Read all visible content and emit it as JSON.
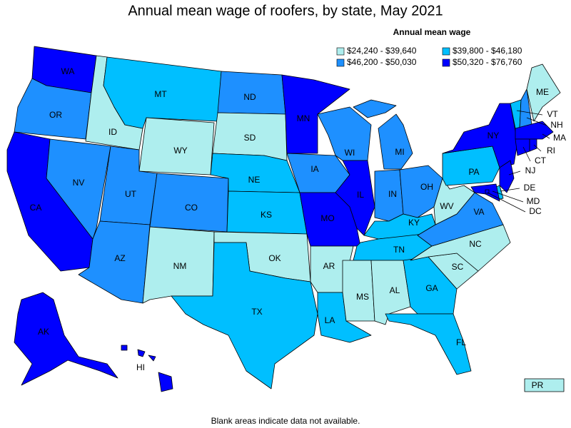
{
  "title": "Annual mean wage of roofers, by state, May 2021",
  "legend": {
    "title": "Annual mean wage",
    "items": [
      {
        "label": "$24,240 - $39,640",
        "color": "#aeeeee"
      },
      {
        "label": "$39,800 - $46,180",
        "color": "#00bfff"
      },
      {
        "label": "$46,200 - $50,030",
        "color": "#1e90ff"
      },
      {
        "label": "$50,320 - $76,760",
        "color": "#0000ff"
      }
    ]
  },
  "states": [
    {
      "label": "WA",
      "color": "#0000ff"
    },
    {
      "label": "OR",
      "color": "#1e90ff"
    },
    {
      "label": "CA",
      "color": "#0000ff"
    },
    {
      "label": "ID",
      "color": "#aeeeee"
    },
    {
      "label": "NV",
      "color": "#1e90ff"
    },
    {
      "label": "MT",
      "color": "#00bfff"
    },
    {
      "label": "WY",
      "color": "#aeeeee"
    },
    {
      "label": "UT",
      "color": "#1e90ff"
    },
    {
      "label": "AZ",
      "color": "#1e90ff"
    },
    {
      "label": "CO",
      "color": "#1e90ff"
    },
    {
      "label": "NM",
      "color": "#aeeeee"
    },
    {
      "label": "ND",
      "color": "#1e90ff"
    },
    {
      "label": "SD",
      "color": "#aeeeee"
    },
    {
      "label": "NE",
      "color": "#00bfff"
    },
    {
      "label": "KS",
      "color": "#00bfff"
    },
    {
      "label": "OK",
      "color": "#aeeeee"
    },
    {
      "label": "TX",
      "color": "#00bfff"
    },
    {
      "label": "MN",
      "color": "#0000ff"
    },
    {
      "label": "IA",
      "color": "#1e90ff"
    },
    {
      "label": "MO",
      "color": "#0000ff"
    },
    {
      "label": "AR",
      "color": "#aeeeee"
    },
    {
      "label": "LA",
      "color": "#00bfff"
    },
    {
      "label": "WI",
      "color": "#1e90ff"
    },
    {
      "label": "IL",
      "color": "#0000ff"
    },
    {
      "label": "MI",
      "color": "#1e90ff"
    },
    {
      "label": "IN",
      "color": "#1e90ff"
    },
    {
      "label": "OH",
      "color": "#1e90ff"
    },
    {
      "label": "KY",
      "color": "#00bfff"
    },
    {
      "label": "TN",
      "color": "#00bfff"
    },
    {
      "label": "MS",
      "color": "#aeeeee"
    },
    {
      "label": "AL",
      "color": "#aeeeee"
    },
    {
      "label": "GA",
      "color": "#00bfff"
    },
    {
      "label": "FL",
      "color": "#00bfff"
    },
    {
      "label": "SC",
      "color": "#aeeeee"
    },
    {
      "label": "NC",
      "color": "#aeeeee"
    },
    {
      "label": "VA",
      "color": "#1e90ff"
    },
    {
      "label": "WV",
      "color": "#aeeeee"
    },
    {
      "label": "PA",
      "color": "#00bfff"
    },
    {
      "label": "NY",
      "color": "#0000ff"
    },
    {
      "label": "VT",
      "color": "#00bfff"
    },
    {
      "label": "NH",
      "color": "#1e90ff"
    },
    {
      "label": "ME",
      "color": "#aeeeee"
    },
    {
      "label": "MA",
      "color": "#0000ff"
    },
    {
      "label": "CT",
      "color": "#0000ff"
    },
    {
      "label": "RI",
      "color": "#0000ff"
    },
    {
      "label": "NJ",
      "color": "#0000ff"
    },
    {
      "label": "DE",
      "color": "#00bfff"
    },
    {
      "label": "MD",
      "color": "#0000ff"
    },
    {
      "label": "DC",
      "color": "#0000ff"
    },
    {
      "label": "AK",
      "color": "#0000ff"
    },
    {
      "label": "HI",
      "color": "#0000ff"
    },
    {
      "label": "PR",
      "color": "#aeeeee"
    }
  ],
  "footnote": "Blank areas indicate data not available."
}
